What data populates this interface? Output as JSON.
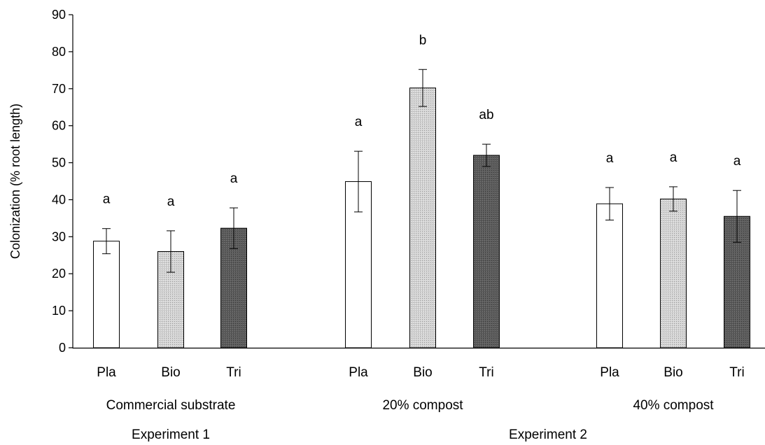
{
  "chart_data": {
    "type": "bar",
    "ylabel": "Colonization (% root length)",
    "ylim": [
      0,
      90
    ],
    "yticks": [
      0,
      10,
      20,
      30,
      40,
      50,
      60,
      70,
      80,
      90
    ],
    "grid": false,
    "legend": "none",
    "groups": [
      {
        "name": "Commercial substrate",
        "experiment": "Experiment 1",
        "bars": [
          {
            "category": "Pla",
            "value": 28.8,
            "error": 3.4,
            "letter": "a",
            "fill": "white"
          },
          {
            "category": "Bio",
            "value": 26.0,
            "error": 5.6,
            "letter": "a",
            "fill": "light-gray"
          },
          {
            "category": "Tri",
            "value": 32.3,
            "error": 5.5,
            "letter": "a",
            "fill": "dark-gray"
          }
        ]
      },
      {
        "name": "20% compost",
        "experiment": "Experiment 2",
        "bars": [
          {
            "category": "Pla",
            "value": 44.9,
            "error": 8.2,
            "letter": "a",
            "fill": "white"
          },
          {
            "category": "Bio",
            "value": 70.2,
            "error": 5.0,
            "letter": "b",
            "fill": "light-gray"
          },
          {
            "category": "Tri",
            "value": 52.0,
            "error": 3.0,
            "letter": "ab",
            "fill": "dark-gray"
          }
        ]
      },
      {
        "name": "40% compost",
        "experiment": "Experiment 2",
        "bars": [
          {
            "category": "Pla",
            "value": 38.9,
            "error": 4.4,
            "letter": "a",
            "fill": "white"
          },
          {
            "category": "Bio",
            "value": 40.2,
            "error": 3.3,
            "letter": "a",
            "fill": "light-gray"
          },
          {
            "category": "Tri",
            "value": 35.5,
            "error": 7.0,
            "letter": "a",
            "fill": "dark-gray"
          }
        ]
      }
    ],
    "experiments": [
      "Experiment 1",
      "Experiment 2"
    ]
  }
}
